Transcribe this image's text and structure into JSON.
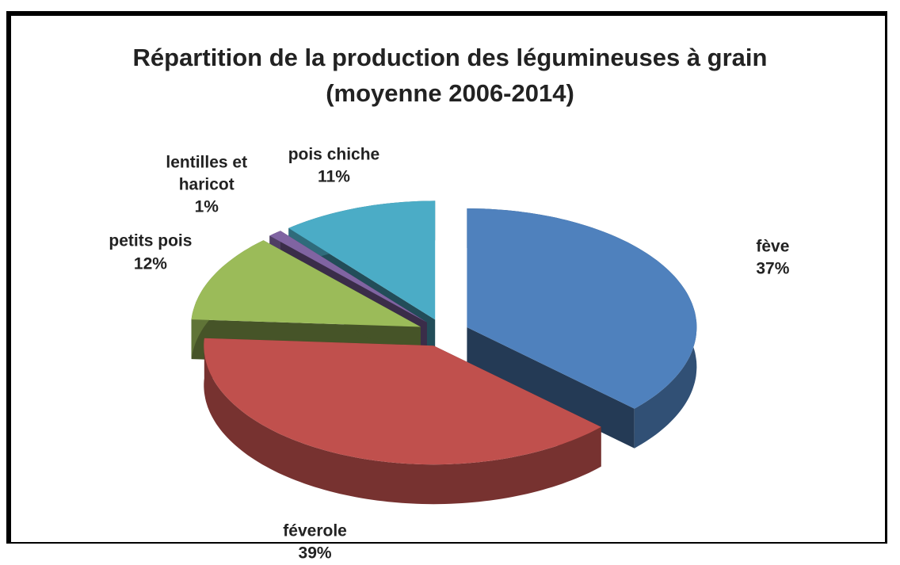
{
  "chart_data": {
    "type": "pie3d",
    "title": "Répartition de la production des légumineuses à grain",
    "subtitle": "(moyenne 2006-2014)",
    "categories": [
      "fève",
      "féverole",
      "petits pois",
      "lentilles et haricot",
      "pois chiche"
    ],
    "values": [
      37,
      39,
      12,
      1,
      11
    ],
    "value_labels": [
      "37%",
      "39%",
      "12%",
      "1%",
      "11%"
    ],
    "colors": [
      "#4f81bd",
      "#c0504d",
      "#9bbb59",
      "#8064a2",
      "#4bacc6"
    ]
  }
}
